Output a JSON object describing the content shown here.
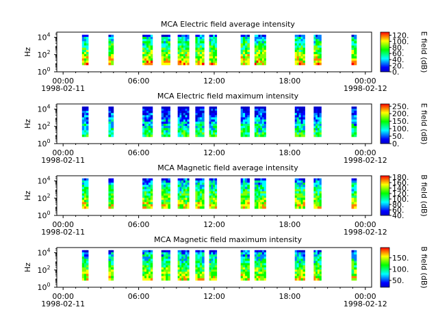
{
  "chart_data": [
    {
      "type": "heatmap",
      "title": "MCA  Electric field average intensity",
      "ylabel": "Hz",
      "y_ticks": [
        {
          "exp": "0"
        },
        {
          "exp": "2"
        },
        {
          "exp": "4"
        }
      ],
      "ylim_log10": [
        0,
        4.6
      ],
      "x_ticks": [
        "00:00",
        "06:00",
        "12:00",
        "18:00",
        "00:00"
      ],
      "x_range_hours": [
        -0.5,
        24.5
      ],
      "date_start": "1998-02-11",
      "date_end": "1998-02-12",
      "colorbar": {
        "label": "E field (dB)",
        "min": 0,
        "max": 130,
        "ticks": [
          "0.",
          "20.",
          "40.",
          "60.",
          "80.",
          "100.",
          "120."
        ],
        "tick_values": [
          0,
          20,
          40,
          60,
          80,
          100,
          120
        ]
      },
      "intensity_bias": 0.55
    },
    {
      "type": "heatmap",
      "title": "MCA  Electric field maximum intensity",
      "ylabel": "Hz",
      "y_ticks": [
        {
          "exp": "0"
        },
        {
          "exp": "2"
        },
        {
          "exp": "4"
        }
      ],
      "ylim_log10": [
        0,
        4.6
      ],
      "x_ticks": [
        "00:00",
        "06:00",
        "12:00",
        "18:00",
        "00:00"
      ],
      "x_range_hours": [
        -0.5,
        24.5
      ],
      "date_start": "1998-02-11",
      "date_end": "1998-02-12",
      "colorbar": {
        "label": "E field (dB)",
        "min": 0,
        "max": 265,
        "ticks": [
          "0.",
          "50.",
          "100.",
          "150.",
          "200.",
          "250."
        ],
        "tick_values": [
          0,
          50,
          100,
          150,
          200,
          250
        ]
      },
      "intensity_bias": 0.3
    },
    {
      "type": "heatmap",
      "title": "MCA  Magnetic field average intensity",
      "ylabel": "Hz",
      "y_ticks": [
        {
          "exp": "0"
        },
        {
          "exp": "2"
        },
        {
          "exp": "4"
        }
      ],
      "ylim_log10": [
        0,
        4.6
      ],
      "x_ticks": [
        "00:00",
        "06:00",
        "12:00",
        "18:00",
        "00:00"
      ],
      "x_range_hours": [
        -0.5,
        24.5
      ],
      "date_start": "1998-02-11",
      "date_end": "1998-02-12",
      "colorbar": {
        "label": "B field (dB)",
        "min": 40,
        "max": 185,
        "ticks": [
          "40.",
          "60.",
          "80.",
          "100.",
          "120.",
          "140.",
          "160.",
          "180."
        ],
        "tick_values": [
          40,
          60,
          80,
          100,
          120,
          140,
          160,
          180
        ]
      },
      "intensity_bias": 0.5
    },
    {
      "type": "heatmap",
      "title": "MCA  Magnetic field maximum intensity",
      "ylabel": "Hz",
      "y_ticks": [
        {
          "exp": "0"
        },
        {
          "exp": "2"
        },
        {
          "exp": "4"
        }
      ],
      "ylim_log10": [
        0,
        4.6
      ],
      "x_ticks": [
        "00:00",
        "06:00",
        "12:00",
        "18:00",
        "00:00"
      ],
      "x_range_hours": [
        -0.5,
        24.5
      ],
      "date_start": "1998-02-11",
      "date_end": "1998-02-12",
      "colorbar": {
        "label": "B field (dB)",
        "min": 20,
        "max": 195,
        "ticks": [
          "50.",
          "100.",
          "150."
        ],
        "tick_values": [
          50,
          100,
          150
        ]
      },
      "intensity_bias": 0.5
    }
  ],
  "data_segments_hours": [
    [
      1.5,
      2.0
    ],
    [
      3.6,
      4.0
    ],
    [
      6.3,
      7.1
    ],
    [
      7.8,
      8.5
    ],
    [
      9.1,
      10.0
    ],
    [
      10.5,
      11.2
    ],
    [
      11.6,
      12.2
    ],
    [
      14.1,
      14.8
    ],
    [
      15.2,
      16.1
    ],
    [
      18.4,
      19.2
    ],
    [
      19.9,
      20.5
    ],
    [
      22.9,
      23.3
    ]
  ],
  "freq_coverage_log10": [
    0.8,
    4.3
  ],
  "colors": {
    "axis": "#000000",
    "background": "#ffffff",
    "colormap": [
      "#0000cc",
      "#0000ff",
      "#0080ff",
      "#00ffff",
      "#00ff80",
      "#00ff00",
      "#80ff00",
      "#ffff00",
      "#ff8000",
      "#ff0000"
    ]
  }
}
